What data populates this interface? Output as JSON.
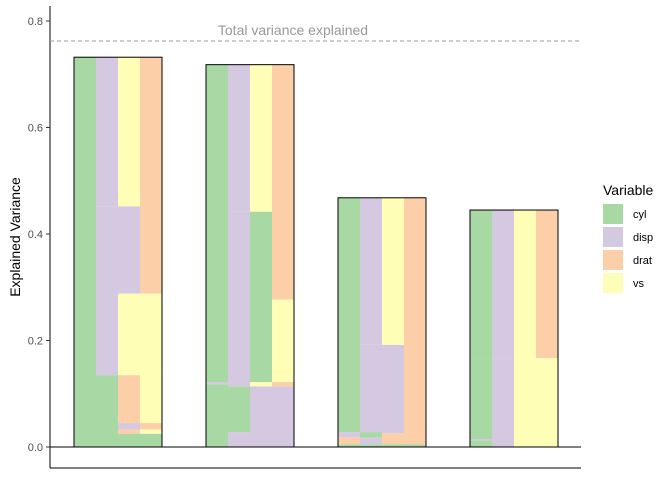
{
  "chart_data": {
    "type": "bar",
    "ylabel": "Explained Variance",
    "xlabel": "",
    "ylim": [
      -0.04,
      0.83
    ],
    "yticks": [
      "0.0",
      "0.2",
      "0.4",
      "0.6",
      "0.8"
    ],
    "ytick_values": [
      0.0,
      0.2,
      0.4,
      0.6,
      0.8
    ],
    "grid": false,
    "reference_line": {
      "value": 0.767,
      "label": "Total variance explained",
      "color": "#999999"
    },
    "legend": {
      "title": "Variable",
      "position": "right",
      "items": [
        {
          "label": "cyl",
          "color": "#A8D8A4"
        },
        {
          "label": "disp",
          "color": "#D5C8E1"
        },
        {
          "label": "drat",
          "color": "#FDCFA8"
        },
        {
          "label": "vs",
          "color": "#FFFEB6"
        }
      ]
    },
    "colors": {
      "cyl": "#A8D8A4",
      "disp": "#D5C8E1",
      "drat": "#FDCFA8",
      "vs": "#FFFEB6"
    },
    "variables": [
      "cyl",
      "disp",
      "drat",
      "vs"
    ],
    "groups": [
      {
        "total": 0.732,
        "columns": [
          [
            [
              "cyl",
              0.0,
              0.732
            ]
          ],
          [
            [
              "cyl",
              0.0,
              0.135
            ],
            [
              "disp",
              0.135,
              0.452
            ],
            [
              "disp",
              0.452,
              0.732
            ]
          ],
          [
            [
              "cyl",
              0.0,
              0.025
            ],
            [
              "drat",
              0.025,
              0.033
            ],
            [
              "disp",
              0.033,
              0.045
            ],
            [
              "drat",
              0.045,
              0.135
            ],
            [
              "vs",
              0.135,
              0.288
            ],
            [
              "disp",
              0.288,
              0.452
            ],
            [
              "vs",
              0.452,
              0.732
            ]
          ],
          [
            [
              "cyl",
              0.0,
              0.025
            ],
            [
              "vs",
              0.025,
              0.033
            ],
            [
              "drat",
              0.033,
              0.045
            ],
            [
              "vs",
              0.045,
              0.135
            ],
            [
              "vs",
              0.135,
              0.288
            ],
            [
              "drat",
              0.288,
              0.732
            ]
          ]
        ]
      },
      {
        "total": 0.718,
        "columns": [
          [
            [
              "cyl",
              0.0,
              0.118
            ],
            [
              "disp",
              0.118,
              0.122
            ],
            [
              "cyl",
              0.122,
              0.718
            ]
          ],
          [
            [
              "disp",
              0.0,
              0.028
            ],
            [
              "cyl",
              0.028,
              0.114
            ],
            [
              "disp",
              0.114,
              0.122
            ],
            [
              "disp",
              0.122,
              0.442
            ],
            [
              "disp",
              0.442,
              0.718
            ]
          ],
          [
            [
              "disp",
              0.0,
              0.114
            ],
            [
              "vs",
              0.114,
              0.122
            ],
            [
              "cyl",
              0.122,
              0.442
            ],
            [
              "vs",
              0.442,
              0.718
            ]
          ],
          [
            [
              "disp",
              0.0,
              0.114
            ],
            [
              "drat",
              0.114,
              0.122
            ],
            [
              "vs",
              0.122,
              0.277
            ],
            [
              "drat",
              0.277,
              0.718
            ]
          ]
        ]
      },
      {
        "total": 0.468,
        "columns": [
          [
            [
              "cyl",
              0.0,
              0.005
            ],
            [
              "drat",
              0.005,
              0.018
            ],
            [
              "disp",
              0.018,
              0.028
            ],
            [
              "cyl",
              0.028,
              0.468
            ]
          ],
          [
            [
              "cyl",
              0.0,
              0.005
            ],
            [
              "disp",
              0.005,
              0.018
            ],
            [
              "cyl",
              0.018,
              0.028
            ],
            [
              "disp",
              0.028,
              0.192
            ],
            [
              "disp",
              0.192,
              0.468
            ]
          ],
          [
            [
              "cyl",
              0.0,
              0.005
            ],
            [
              "drat",
              0.005,
              0.026
            ],
            [
              "disp",
              0.026,
              0.192
            ],
            [
              "vs",
              0.192,
              0.468
            ]
          ],
          [
            [
              "cyl",
              0.0,
              0.005
            ],
            [
              "drat",
              0.005,
              0.468
            ]
          ]
        ]
      },
      {
        "total": 0.445,
        "columns": [
          [
            [
              "cyl",
              0.0,
              0.012
            ],
            [
              "disp",
              0.012,
              0.015
            ],
            [
              "cyl",
              0.015,
              0.167
            ],
            [
              "cyl",
              0.167,
              0.445
            ]
          ],
          [
            [
              "disp",
              0.0,
              0.015
            ],
            [
              "disp",
              0.015,
              0.167
            ],
            [
              "disp",
              0.167,
              0.445
            ]
          ],
          [
            [
              "vs",
              0.0,
              0.015
            ],
            [
              "vs",
              0.015,
              0.167
            ],
            [
              "vs",
              0.167,
              0.445
            ]
          ],
          [
            [
              "vs",
              0.0,
              0.015
            ],
            [
              "vs",
              0.015,
              0.167
            ],
            [
              "drat",
              0.167,
              0.445
            ]
          ]
        ]
      }
    ]
  }
}
